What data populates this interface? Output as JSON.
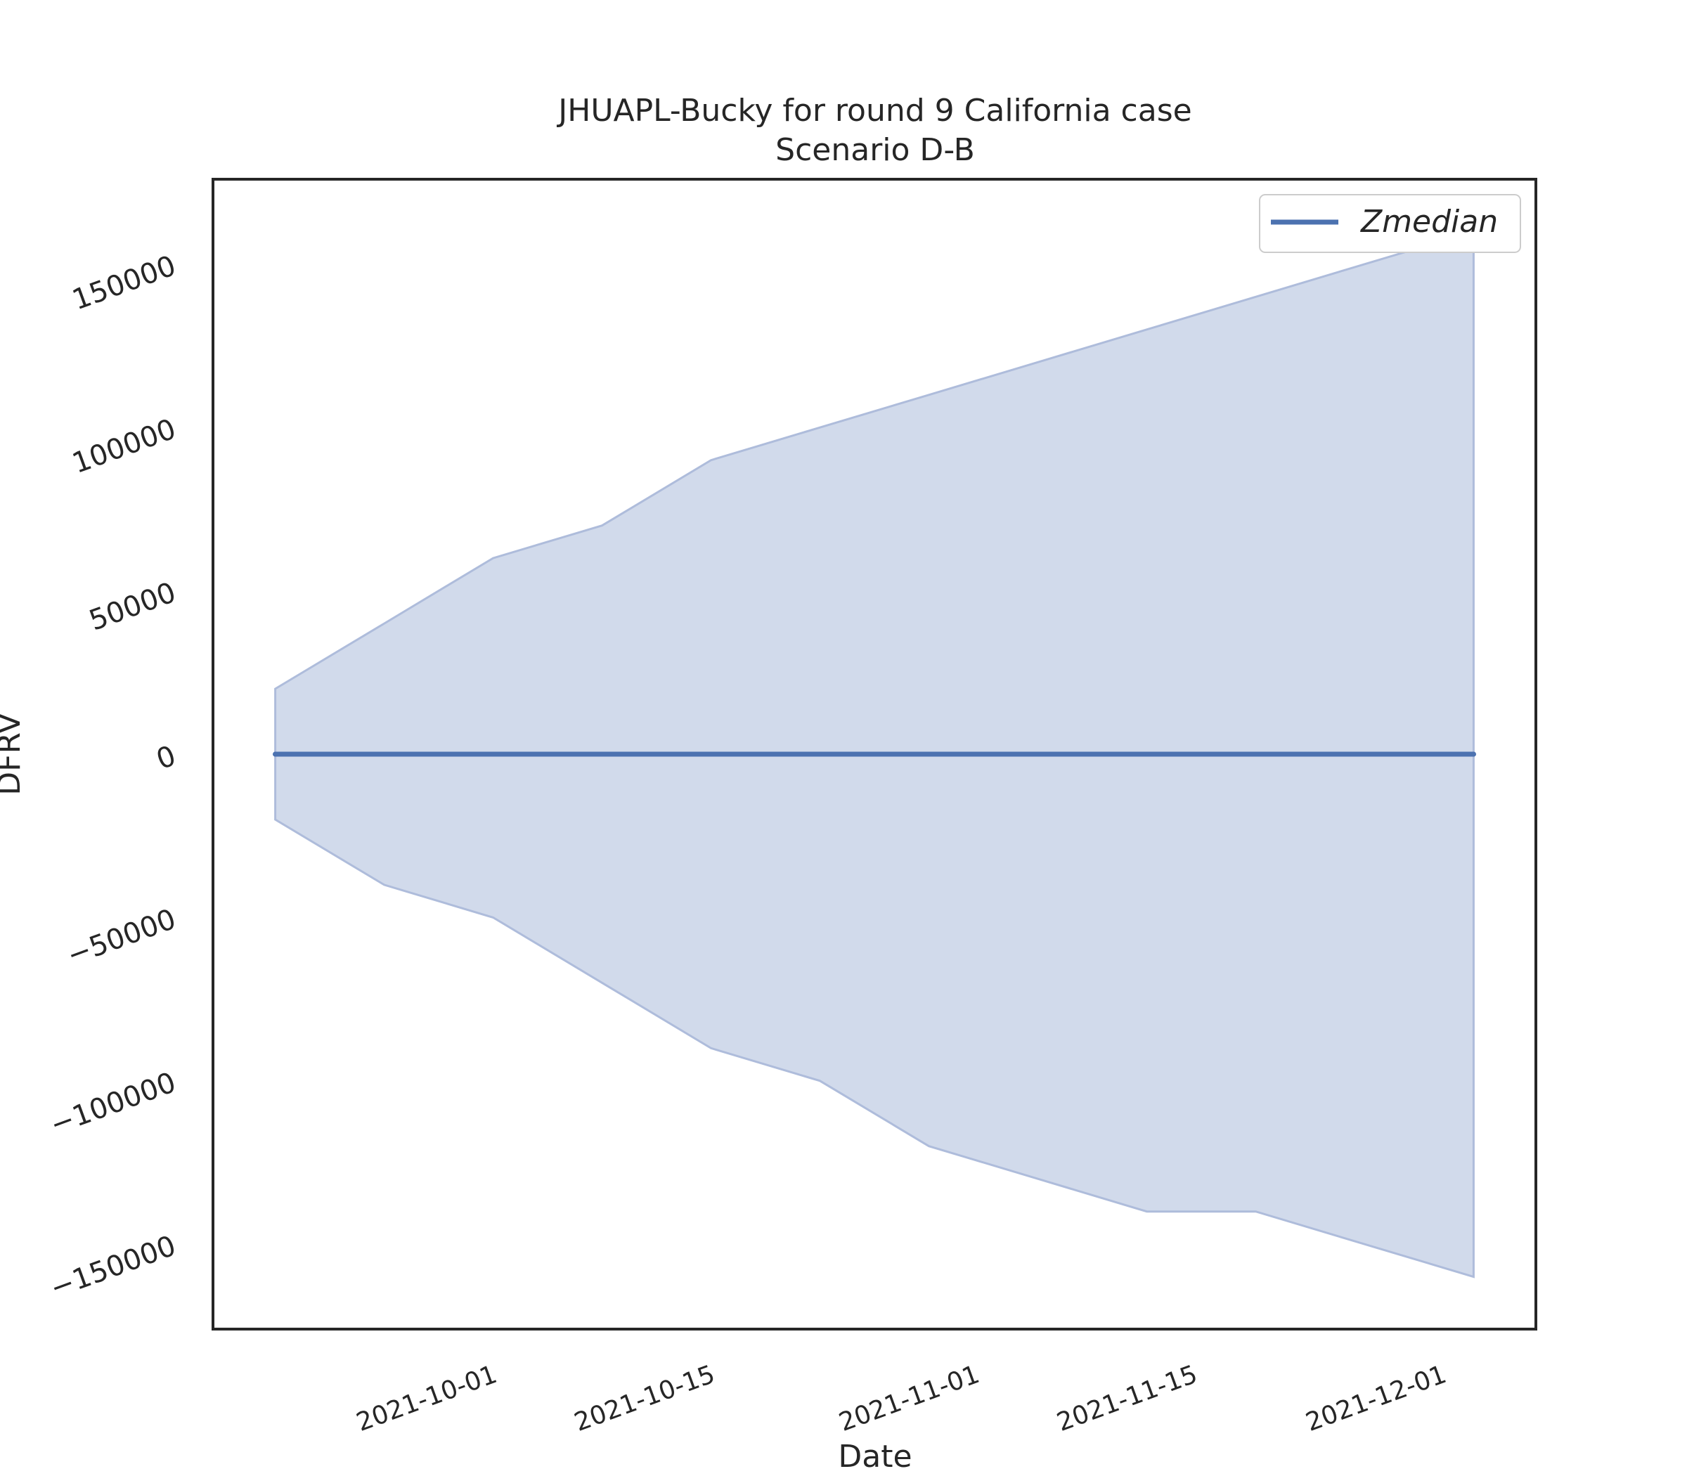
{
  "chart_data": {
    "type": "area",
    "title": "JHUAPL-Bucky for round 9 California case",
    "subtitle": "Scenario D-B",
    "xlabel": "Date",
    "ylabel": "DFRV",
    "x_tick_labels": [
      "2021-10-01",
      "2021-10-15",
      "2021-11-01",
      "2021-11-15",
      "2021-12-01"
    ],
    "y_tick_labels": [
      "−150000",
      "−100000",
      "−50000",
      "0",
      "50000",
      "100000",
      "150000"
    ],
    "x_ticks": [
      "2021-10-01",
      "2021-10-15",
      "2021-11-01",
      "2021-11-15",
      "2021-12-01"
    ],
    "y_ticks": [
      -150000,
      -100000,
      -50000,
      0,
      50000,
      100000,
      150000
    ],
    "xlim": [
      "2021-09-14",
      "2021-12-08"
    ],
    "ylim": [
      -176000,
      176000
    ],
    "grid": false,
    "legend_position": "top-right",
    "colors": {
      "line": "#4c72b0",
      "band": "#c9d3e8",
      "band_edge": "#aebcdb",
      "frame": "#262626"
    },
    "x": [
      "2021-09-18",
      "2021-09-25",
      "2021-10-02",
      "2021-10-09",
      "2021-10-16",
      "2021-10-23",
      "2021-10-30",
      "2021-11-06",
      "2021-11-13",
      "2021-11-20",
      "2021-11-27",
      "2021-12-04"
    ],
    "series": [
      {
        "name": "Zmedian",
        "values": [
          0,
          0,
          0,
          0,
          0,
          0,
          0,
          0,
          0,
          0,
          0,
          0
        ],
        "lower": [
          -20000,
          -40000,
          -50000,
          -70000,
          -90000,
          -100000,
          -120000,
          -130000,
          -140000,
          -140000,
          -150000,
          -160000
        ],
        "upper": [
          20000,
          40000,
          60000,
          70000,
          90000,
          100000,
          110000,
          120000,
          130000,
          140000,
          150000,
          160000
        ]
      }
    ]
  }
}
